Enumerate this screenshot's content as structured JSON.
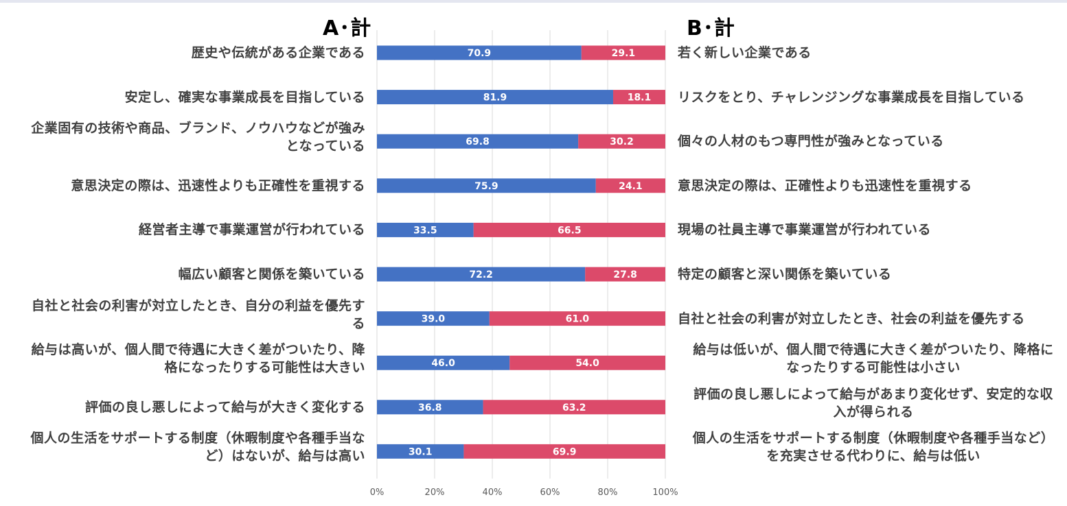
{
  "headers": {
    "a": "A･計",
    "b": "B･計"
  },
  "chart_data": {
    "type": "bar",
    "orientation": "horizontal",
    "stacked": "100%",
    "categories_left": [
      "歴史や伝統がある企業である",
      "安定し、確実な事業成長を目指している",
      "企業固有の技術や商品、ブランド、ノウハウなどが強みとなっている",
      "意思決定の際は、迅速性よりも正確性を重視する",
      "経営者主導で事業運営が行われている",
      "幅広い顧客と関係を築いている",
      "自社と社会の利害が対立したとき、自分の利益を優先する",
      "給与は高いが、個人間で待遇に大きく差がついたり、降格になったりする可能性は大きい",
      "評価の良し悪しによって給与が大きく変化する",
      "個人の生活をサポートする制度（休暇制度や各種手当など）はないが、給与は高い"
    ],
    "categories_right": [
      "若く新しい企業である",
      "リスクをとり、チャレンジングな事業成長を目指している",
      "個々の人材のもつ専門性が強みとなっている",
      "意思決定の際は、正確性よりも迅速性を重視する",
      "現場の社員主導で事業運営が行われている",
      "特定の顧客と深い関係を築いている",
      "自社と社会の利害が対立したとき、社会の利益を優先する",
      "給与は低いが、個人間で待遇に大きく差がついたり、降格になったりする可能性は小さい",
      "評価の良し悪しによって給与があまり変化せず、安定的な収入が得られる",
      "個人の生活をサポートする制度（休暇制度や各種手当など）を充実させる代わりに、給与は低い"
    ],
    "series": [
      {
        "name": "A･計",
        "color": "#4472c4",
        "values": [
          70.9,
          81.9,
          69.8,
          75.9,
          33.5,
          72.2,
          39.0,
          46.0,
          36.8,
          30.1
        ],
        "labels": [
          "70.9",
          "81.9",
          "69.8",
          "75.9",
          "33.5",
          "72.2",
          "39.0",
          "46.0",
          "36.8",
          "30.1"
        ]
      },
      {
        "name": "B･計",
        "color": "#dc4a6a",
        "values": [
          29.1,
          18.1,
          30.2,
          24.1,
          66.5,
          27.8,
          61.0,
          54.0,
          63.2,
          69.9
        ],
        "labels": [
          "29.1",
          "18.1",
          "30.2",
          "24.1",
          "66.5",
          "27.8",
          "61.0",
          "54.0",
          "63.2",
          "69.9"
        ]
      }
    ],
    "x_ticks": [
      "0%",
      "20%",
      "40%",
      "60%",
      "80%",
      "100%"
    ],
    "xlim": [
      0,
      100
    ],
    "grid": true
  }
}
